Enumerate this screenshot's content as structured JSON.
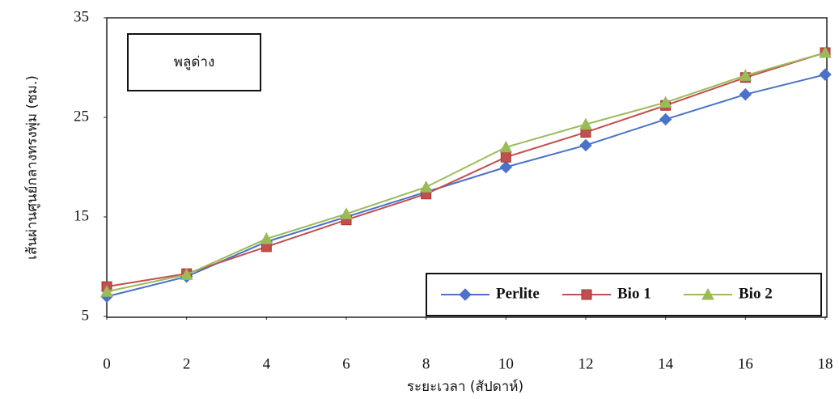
{
  "chart_data": {
    "type": "line",
    "annotation": "พลูด่าง",
    "xlabel": "ระยะเวลา (สัปดาห์)",
    "ylabel": "เส้นผ่านศูนย์กลางทรงพุ่ม (ซม.)",
    "x": [
      0,
      2,
      4,
      6,
      8,
      10,
      12,
      14,
      16,
      18
    ],
    "series": [
      {
        "name": "Perlite",
        "color": "#4a72c8",
        "marker": "diamond",
        "values": [
          7.0,
          9.0,
          12.5,
          15.0,
          17.5,
          20.0,
          22.2,
          24.8,
          27.3,
          29.3
        ]
      },
      {
        "name": "Bio 1",
        "color": "#c0504d",
        "marker": "square",
        "values": [
          8.0,
          9.3,
          12.0,
          14.7,
          17.3,
          21.0,
          23.5,
          26.2,
          29.0,
          31.5
        ]
      },
      {
        "name": "Bio 2",
        "color": "#9bbb59",
        "marker": "triangle",
        "values": [
          7.5,
          9.2,
          12.8,
          15.3,
          18.0,
          22.0,
          24.3,
          26.5,
          29.2,
          31.5
        ]
      }
    ],
    "xlim": [
      0,
      18
    ],
    "xticks": [
      0,
      2,
      4,
      6,
      8,
      10,
      12,
      14,
      16,
      18
    ],
    "ylim": [
      5,
      35
    ],
    "yticks": [
      5,
      15,
      25,
      35
    ],
    "grid": false
  }
}
